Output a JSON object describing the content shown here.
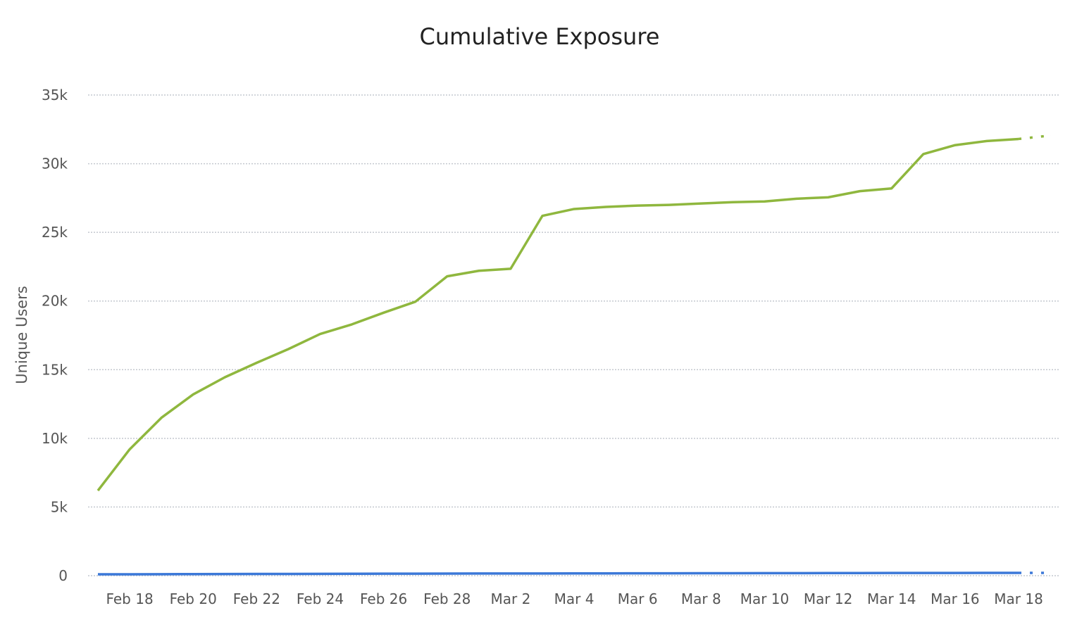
{
  "chart_data": {
    "type": "line",
    "title": "Cumulative Exposure",
    "xlabel": "",
    "ylabel": "Unique Users",
    "ylim": [
      0,
      35000
    ],
    "yticks": [
      0,
      5000,
      10000,
      15000,
      20000,
      25000,
      30000,
      35000
    ],
    "ytick_labels": [
      "0",
      "5k",
      "10k",
      "15k",
      "20k",
      "25k",
      "30k",
      "35k"
    ],
    "xtick_labels": [
      "Feb 18",
      "Feb 20",
      "Feb 22",
      "Feb 24",
      "Feb 26",
      "Feb 28",
      "Mar 2",
      "Mar 4",
      "Mar 6",
      "Mar 8",
      "Mar 10",
      "Mar 12",
      "Mar 14",
      "Mar 16",
      "Mar 18"
    ],
    "grid": true,
    "legend": "none",
    "x": [
      "Feb 17",
      "Feb 18",
      "Feb 19",
      "Feb 20",
      "Feb 21",
      "Feb 22",
      "Feb 23",
      "Feb 24",
      "Feb 25",
      "Feb 26",
      "Feb 27",
      "Feb 28",
      "Mar 1",
      "Mar 2",
      "Mar 3",
      "Mar 4",
      "Mar 5",
      "Mar 6",
      "Mar 7",
      "Mar 8",
      "Mar 9",
      "Mar 10",
      "Mar 11",
      "Mar 12",
      "Mar 13",
      "Mar 14",
      "Mar 15",
      "Mar 16",
      "Mar 17",
      "Mar 18",
      "Mar 19"
    ],
    "projected_from": "Mar 18",
    "series": [
      {
        "color": "#8fb73e",
        "values": [
          6200,
          9200,
          11500,
          13200,
          14450,
          15500,
          16500,
          17600,
          18300,
          19150,
          19950,
          21800,
          22200,
          22350,
          26200,
          26700,
          26850,
          26950,
          27000,
          27100,
          27200,
          27250,
          27450,
          27550,
          28000,
          28200,
          30700,
          31350,
          31650,
          31800,
          32050
        ]
      },
      {
        "color": "#3b78d8",
        "values": [
          100,
          105,
          110,
          115,
          120,
          125,
          130,
          135,
          140,
          145,
          150,
          155,
          158,
          160,
          163,
          166,
          169,
          172,
          175,
          178,
          181,
          184,
          187,
          190,
          193,
          196,
          198,
          200,
          202,
          204,
          206
        ]
      }
    ]
  }
}
